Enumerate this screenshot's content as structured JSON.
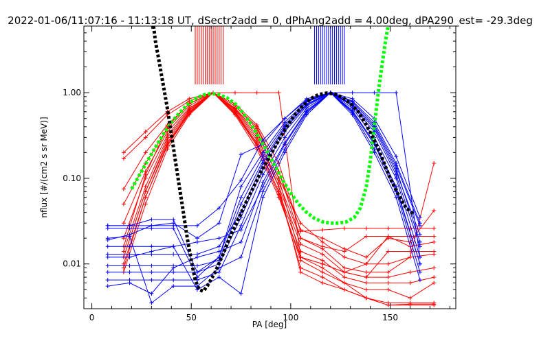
{
  "chart_data": {
    "type": "line",
    "title": "2022-01-06/11:07:16 - 11:13:18 UT, dSectr2add = 0, dPhAng2add = 4.00deg, dPA290_est= -29.3deg",
    "xlabel": "PA [deg]",
    "ylabel": "nflux [#/(cm2 s sr MeV)]",
    "xlim": [
      -4,
      183
    ],
    "ylim": [
      0.003,
      6.0
    ],
    "yscale": "log",
    "grid": false,
    "x_ticks": [
      0,
      50,
      100,
      150
    ],
    "x_tick_labels": [
      "0",
      "50",
      "100",
      "150"
    ],
    "y_ticks": [
      0.01,
      0.1,
      1.0
    ],
    "y_tick_labels": [
      "0.01",
      "0.10",
      "1.00"
    ],
    "red_marker_x": [
      16,
      27,
      38,
      49,
      61,
      72,
      83,
      94,
      105,
      116,
      127,
      138,
      149,
      160,
      172
    ],
    "red_curves": [
      [
        0.2,
        0.35,
        0.6,
        0.85,
        1.0,
        0.65,
        0.35,
        0.1,
        0.03,
        0.018,
        0.012,
        0.01,
        0.01,
        0.012,
        0.15
      ],
      [
        0.17,
        0.3,
        0.55,
        0.8,
        1.0,
        0.7,
        0.4,
        0.12,
        0.025,
        0.02,
        0.015,
        0.012,
        0.02,
        0.018,
        0.042
      ],
      [
        0.014,
        0.08,
        0.3,
        0.62,
        1.0,
        0.62,
        0.3,
        0.09,
        0.02,
        0.015,
        0.009,
        0.008,
        0.008,
        0.012,
        0.013
      ],
      [
        0.012,
        0.07,
        0.28,
        0.6,
        1.0,
        0.6,
        0.28,
        0.08,
        0.017,
        0.013,
        0.008,
        0.007,
        0.007,
        0.008,
        0.009
      ],
      [
        0.009,
        0.06,
        0.25,
        0.58,
        1.0,
        0.58,
        0.25,
        0.07,
        0.014,
        0.011,
        0.007,
        0.006,
        0.006,
        0.006,
        0.007
      ],
      [
        0.008,
        0.05,
        0.22,
        0.55,
        1.0,
        0.55,
        0.22,
        0.06,
        0.012,
        0.009,
        0.006,
        0.005,
        0.005,
        0.004,
        0.006
      ],
      [
        0.01,
        0.06,
        0.24,
        0.57,
        1.0,
        0.57,
        0.24,
        0.065,
        0.011,
        0.008,
        0.006,
        0.004,
        0.0035,
        0.0035,
        0.0035
      ],
      [
        0.012,
        0.07,
        0.26,
        0.59,
        1.0,
        0.59,
        0.26,
        0.07,
        0.009,
        0.007,
        0.005,
        0.004,
        0.0033,
        0.0033,
        0.0033
      ],
      [
        0.02,
        0.1,
        0.32,
        0.64,
        1.0,
        0.64,
        0.32,
        0.08,
        0.008,
        0.006,
        0.005,
        0.004,
        0.0033,
        0.0034,
        0.0034
      ],
      [
        0.03,
        0.12,
        0.35,
        0.66,
        1.0,
        0.66,
        0.35,
        0.1,
        0.012,
        0.01,
        0.008,
        0.007,
        0.014,
        0.014,
        0.014
      ],
      [
        0.05,
        0.15,
        0.38,
        0.7,
        1.0,
        0.7,
        0.38,
        0.12,
        0.02,
        0.016,
        0.014,
        0.021,
        0.021,
        0.021,
        0.021
      ],
      [
        0.075,
        0.2,
        0.42,
        0.74,
        1.0,
        0.74,
        0.42,
        0.15,
        0.024,
        0.025,
        0.026,
        0.026,
        0.026,
        0.026,
        0.026
      ],
      [
        0.016,
        0.11,
        0.4,
        0.75,
        1.0,
        1.0,
        1.0,
        1.0,
        0.012,
        0.01,
        0.008,
        0.01,
        0.021,
        0.016,
        0.018
      ]
    ],
    "blue_marker_x": [
      8,
      19,
      30,
      41,
      53,
      64,
      75,
      86,
      97,
      108,
      120,
      131,
      142,
      153,
      165
    ],
    "blue_curves": [
      [
        0.028,
        0.028,
        0.033,
        0.033,
        0.008,
        0.012,
        0.08,
        0.2,
        0.45,
        0.8,
        1.0,
        0.8,
        0.45,
        0.15,
        0.03
      ],
      [
        0.026,
        0.026,
        0.026,
        0.026,
        0.007,
        0.012,
        0.06,
        0.18,
        0.42,
        0.78,
        1.0,
        0.78,
        0.42,
        0.14,
        0.028
      ],
      [
        0.019,
        0.022,
        0.028,
        0.03,
        0.02,
        0.03,
        0.19,
        0.25,
        0.5,
        0.85,
        1.0,
        0.85,
        0.5,
        0.18,
        0.035
      ],
      [
        0.013,
        0.013,
        0.013,
        0.013,
        0.013,
        0.016,
        0.04,
        0.15,
        0.38,
        0.72,
        1.0,
        0.72,
        0.38,
        0.12,
        0.022
      ],
      [
        0.0095,
        0.0095,
        0.0095,
        0.0095,
        0.0095,
        0.011,
        0.05,
        0.16,
        0.4,
        0.74,
        1.0,
        0.74,
        0.4,
        0.13,
        0.018
      ],
      [
        0.008,
        0.008,
        0.008,
        0.008,
        0.008,
        0.01,
        0.035,
        0.13,
        0.35,
        0.7,
        1.0,
        0.7,
        0.35,
        0.11,
        0.016
      ],
      [
        0.0065,
        0.0065,
        0.0065,
        0.0065,
        0.0065,
        0.008,
        0.028,
        0.11,
        0.3,
        0.66,
        1.0,
        0.66,
        0.3,
        0.1,
        0.012
      ],
      [
        0.0055,
        0.006,
        0.0045,
        0.009,
        0.012,
        0.014,
        0.018,
        0.09,
        0.26,
        0.62,
        1.0,
        0.62,
        0.26,
        0.08,
        0.01
      ],
      [
        0.02,
        0.021,
        0.0035,
        0.0055,
        0.0055,
        0.009,
        0.012,
        0.07,
        0.22,
        0.58,
        1.0,
        0.58,
        0.22,
        0.07,
        0.008
      ],
      [
        0.016,
        0.016,
        0.016,
        0.016,
        0.005,
        0.007,
        0.0045,
        0.06,
        0.2,
        0.55,
        1.0,
        0.55,
        0.2,
        0.06,
        0.0065
      ],
      [
        0.012,
        0.012,
        0.014,
        0.016,
        0.018,
        0.02,
        0.025,
        0.08,
        0.25,
        0.6,
        1.0,
        0.6,
        0.25,
        0.075,
        0.01
      ],
      [
        0.028,
        0.028,
        0.028,
        0.028,
        0.028,
        0.045,
        0.095,
        0.28,
        0.5,
        0.82,
        1.0,
        1.0,
        1.0,
        1.0,
        0.012
      ]
    ],
    "green_fit": [
      {
        "x": 20,
        "y": 0.075
      },
      {
        "x": 24,
        "y": 0.11
      },
      {
        "x": 28,
        "y": 0.16
      },
      {
        "x": 32,
        "y": 0.23
      },
      {
        "x": 36,
        "y": 0.33
      },
      {
        "x": 40,
        "y": 0.45
      },
      {
        "x": 44,
        "y": 0.58
      },
      {
        "x": 48,
        "y": 0.72
      },
      {
        "x": 52,
        "y": 0.85
      },
      {
        "x": 56,
        "y": 0.94
      },
      {
        "x": 60,
        "y": 0.98
      },
      {
        "x": 64,
        "y": 0.95
      },
      {
        "x": 68,
        "y": 0.87
      },
      {
        "x": 72,
        "y": 0.74
      },
      {
        "x": 76,
        "y": 0.58
      },
      {
        "x": 80,
        "y": 0.43
      },
      {
        "x": 84,
        "y": 0.3
      },
      {
        "x": 88,
        "y": 0.21
      },
      {
        "x": 92,
        "y": 0.14
      },
      {
        "x": 96,
        "y": 0.095
      },
      {
        "x": 100,
        "y": 0.067
      },
      {
        "x": 104,
        "y": 0.05
      },
      {
        "x": 108,
        "y": 0.04
      },
      {
        "x": 112,
        "y": 0.034
      },
      {
        "x": 116,
        "y": 0.031
      },
      {
        "x": 120,
        "y": 0.03
      },
      {
        "x": 124,
        "y": 0.03
      },
      {
        "x": 128,
        "y": 0.031
      },
      {
        "x": 132,
        "y": 0.035
      },
      {
        "x": 135,
        "y": 0.045
      },
      {
        "x": 138,
        "y": 0.08
      },
      {
        "x": 140,
        "y": 0.16
      },
      {
        "x": 142,
        "y": 0.4
      },
      {
        "x": 144,
        "y": 1.0
      },
      {
        "x": 146,
        "y": 2.2
      },
      {
        "x": 148,
        "y": 4.5
      },
      {
        "x": 149,
        "y": 6.0
      }
    ],
    "black_fit": [
      {
        "x": 31,
        "y": 6.0
      },
      {
        "x": 32,
        "y": 4.0
      },
      {
        "x": 34,
        "y": 2.2
      },
      {
        "x": 36,
        "y": 1.2
      },
      {
        "x": 38,
        "y": 0.65
      },
      {
        "x": 40,
        "y": 0.33
      },
      {
        "x": 42,
        "y": 0.16
      },
      {
        "x": 44,
        "y": 0.08
      },
      {
        "x": 46,
        "y": 0.04
      },
      {
        "x": 48,
        "y": 0.02
      },
      {
        "x": 50,
        "y": 0.011
      },
      {
        "x": 52,
        "y": 0.0065
      },
      {
        "x": 54,
        "y": 0.005
      },
      {
        "x": 56,
        "y": 0.0048
      },
      {
        "x": 58,
        "y": 0.0055
      },
      {
        "x": 62,
        "y": 0.008
      },
      {
        "x": 66,
        "y": 0.013
      },
      {
        "x": 70,
        "y": 0.022
      },
      {
        "x": 74,
        "y": 0.035
      },
      {
        "x": 78,
        "y": 0.055
      },
      {
        "x": 82,
        "y": 0.085
      },
      {
        "x": 86,
        "y": 0.13
      },
      {
        "x": 90,
        "y": 0.19
      },
      {
        "x": 94,
        "y": 0.28
      },
      {
        "x": 98,
        "y": 0.4
      },
      {
        "x": 102,
        "y": 0.55
      },
      {
        "x": 106,
        "y": 0.7
      },
      {
        "x": 110,
        "y": 0.85
      },
      {
        "x": 114,
        "y": 0.95
      },
      {
        "x": 118,
        "y": 0.99
      },
      {
        "x": 122,
        "y": 0.97
      },
      {
        "x": 126,
        "y": 0.88
      },
      {
        "x": 130,
        "y": 0.75
      },
      {
        "x": 134,
        "y": 0.6
      },
      {
        "x": 138,
        "y": 0.42
      },
      {
        "x": 142,
        "y": 0.28
      },
      {
        "x": 146,
        "y": 0.17
      },
      {
        "x": 150,
        "y": 0.1
      },
      {
        "x": 154,
        "y": 0.065
      },
      {
        "x": 158,
        "y": 0.045
      },
      {
        "x": 162,
        "y": 0.038
      }
    ],
    "red_spike_x": [
      52,
      53,
      54,
      55,
      56,
      57,
      58,
      59,
      60,
      61,
      62,
      63,
      64,
      65,
      66
    ],
    "blue_spike_x": [
      112,
      113,
      114,
      115,
      116,
      117,
      118,
      119,
      120,
      121,
      122,
      123,
      124,
      125,
      126,
      127
    ],
    "colors": {
      "red": "#ff0000",
      "blue": "#0000ff",
      "green": "#00ff00",
      "black": "#000000"
    }
  }
}
